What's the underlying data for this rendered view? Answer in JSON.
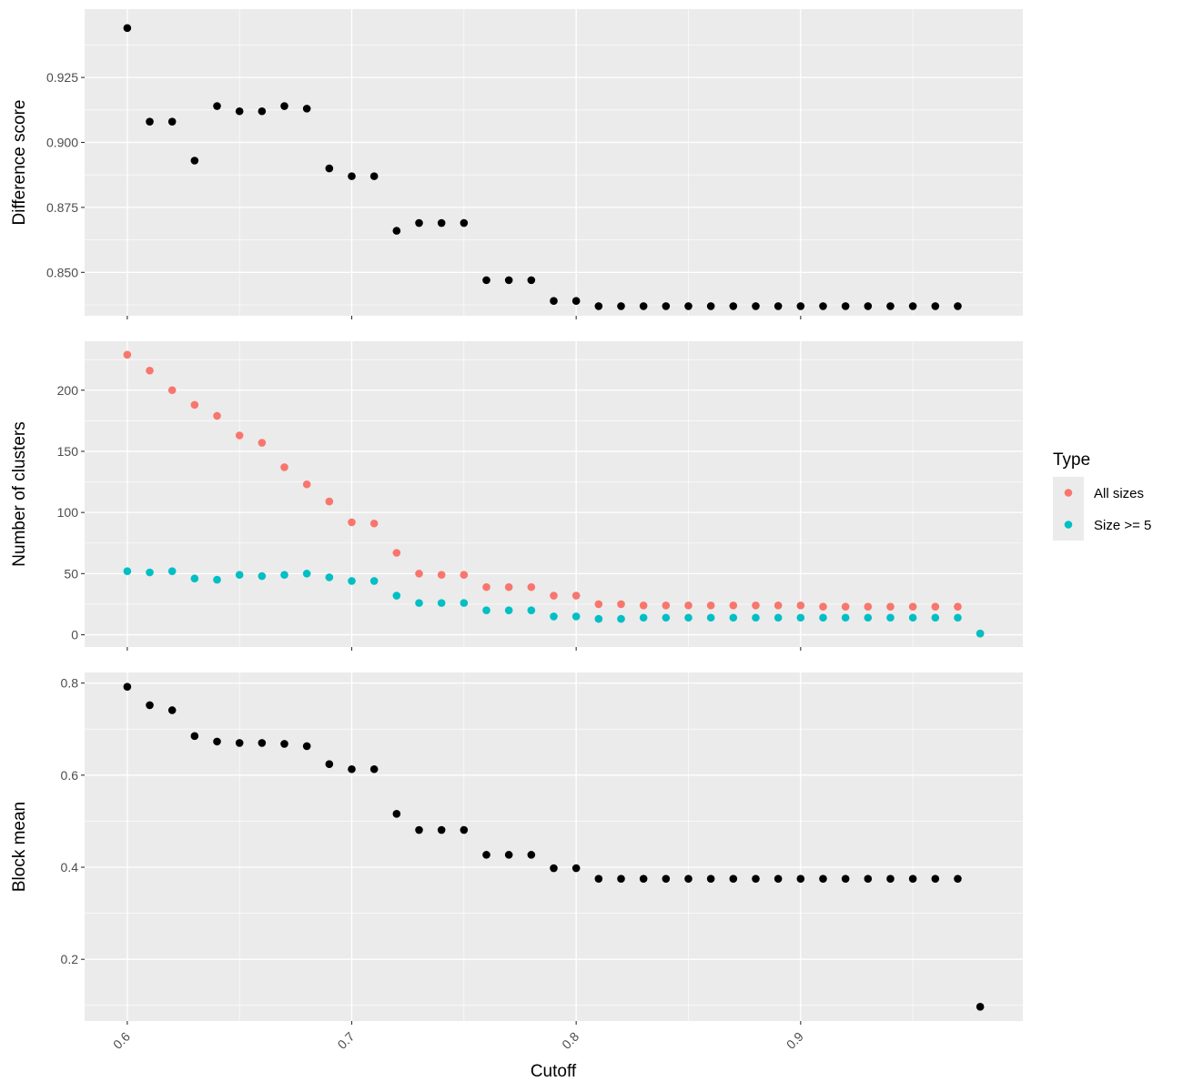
{
  "chart_data": {
    "type": "scatter",
    "xlabel": "Cutoff",
    "x_ticks": [
      "0.6",
      "0.7",
      "0.8",
      "0.9"
    ],
    "x_tick_values": [
      0.6,
      0.7,
      0.8,
      0.9
    ],
    "xlim": [
      0.581,
      0.999
    ],
    "panels": [
      {
        "ylabel": "Difference score",
        "ylim": [
          0.8333,
          0.9513
        ],
        "y_ticks": [
          "0.850",
          "0.875",
          "0.900",
          "0.925"
        ],
        "y_tick_values": [
          0.85,
          0.875,
          0.9,
          0.925
        ],
        "series": [
          {
            "color": "#000000",
            "x": [
              0.6,
              0.61,
              0.62,
              0.63,
              0.64,
              0.65,
              0.66,
              0.67,
              0.68,
              0.69,
              0.7,
              0.71,
              0.72,
              0.73,
              0.74,
              0.75,
              0.76,
              0.77,
              0.78,
              0.79,
              0.8,
              0.81,
              0.82,
              0.83,
              0.84,
              0.85,
              0.86,
              0.87,
              0.88,
              0.89,
              0.9,
              0.91,
              0.92,
              0.93,
              0.94,
              0.95,
              0.96,
              0.97
            ],
            "y": [
              0.944,
              0.908,
              0.908,
              0.893,
              0.914,
              0.912,
              0.912,
              0.914,
              0.913,
              0.89,
              0.887,
              0.887,
              0.866,
              0.869,
              0.869,
              0.869,
              0.847,
              0.847,
              0.847,
              0.839,
              0.839,
              0.837,
              0.837,
              0.837,
              0.837,
              0.837,
              0.837,
              0.837,
              0.837,
              0.837,
              0.837,
              0.837,
              0.837,
              0.837,
              0.837,
              0.837,
              0.837,
              0.837
            ]
          }
        ]
      },
      {
        "ylabel": "Number of clusters",
        "ylim": [
          -10,
          240
        ],
        "y_ticks": [
          "0",
          "50",
          "100",
          "150",
          "200"
        ],
        "y_tick_values": [
          0,
          50,
          100,
          150,
          200
        ],
        "series": [
          {
            "name": "All sizes",
            "color": "#F8766D",
            "x": [
              0.6,
              0.61,
              0.62,
              0.63,
              0.64,
              0.65,
              0.66,
              0.67,
              0.68,
              0.69,
              0.7,
              0.71,
              0.72,
              0.73,
              0.74,
              0.75,
              0.76,
              0.77,
              0.78,
              0.79,
              0.8,
              0.81,
              0.82,
              0.83,
              0.84,
              0.85,
              0.86,
              0.87,
              0.88,
              0.89,
              0.9,
              0.91,
              0.92,
              0.93,
              0.94,
              0.95,
              0.96,
              0.97,
              0.98
            ],
            "y": [
              229,
              216,
              200,
              188,
              179,
              163,
              157,
              137,
              123,
              109,
              92,
              91,
              67,
              50,
              49,
              49,
              39,
              39,
              39,
              32,
              32,
              25,
              25,
              24,
              24,
              24,
              24,
              24,
              24,
              24,
              24,
              23,
              23,
              23,
              23,
              23,
              23,
              23,
              1
            ]
          },
          {
            "name": "Size >= 5",
            "color": "#00BFC4",
            "x": [
              0.6,
              0.61,
              0.62,
              0.63,
              0.64,
              0.65,
              0.66,
              0.67,
              0.68,
              0.69,
              0.7,
              0.71,
              0.72,
              0.73,
              0.74,
              0.75,
              0.76,
              0.77,
              0.78,
              0.79,
              0.8,
              0.81,
              0.82,
              0.83,
              0.84,
              0.85,
              0.86,
              0.87,
              0.88,
              0.89,
              0.9,
              0.91,
              0.92,
              0.93,
              0.94,
              0.95,
              0.96,
              0.97,
              0.98
            ],
            "y": [
              52,
              51,
              52,
              46,
              45,
              49,
              48,
              49,
              50,
              47,
              44,
              44,
              32,
              26,
              26,
              26,
              20,
              20,
              20,
              15,
              15,
              13,
              13,
              14,
              14,
              14,
              14,
              14,
              14,
              14,
              14,
              14,
              14,
              14,
              14,
              14,
              14,
              14,
              1
            ]
          }
        ]
      },
      {
        "ylabel": "Block mean",
        "ylim": [
          0.066,
          0.823
        ],
        "y_ticks": [
          "0.2",
          "0.4",
          "0.6",
          "0.8"
        ],
        "y_tick_values": [
          0.2,
          0.4,
          0.6,
          0.8
        ],
        "series": [
          {
            "color": "#000000",
            "x": [
              0.6,
              0.61,
              0.62,
              0.63,
              0.64,
              0.65,
              0.66,
              0.67,
              0.68,
              0.69,
              0.7,
              0.71,
              0.72,
              0.73,
              0.74,
              0.75,
              0.76,
              0.77,
              0.78,
              0.79,
              0.8,
              0.81,
              0.82,
              0.83,
              0.84,
              0.85,
              0.86,
              0.87,
              0.88,
              0.89,
              0.9,
              0.91,
              0.92,
              0.93,
              0.94,
              0.95,
              0.96,
              0.97,
              0.98
            ],
            "y": [
              0.792,
              0.752,
              0.741,
              0.685,
              0.673,
              0.67,
              0.67,
              0.668,
              0.663,
              0.624,
              0.613,
              0.613,
              0.516,
              0.481,
              0.481,
              0.481,
              0.427,
              0.427,
              0.427,
              0.398,
              0.398,
              0.375,
              0.375,
              0.375,
              0.375,
              0.375,
              0.375,
              0.375,
              0.375,
              0.375,
              0.375,
              0.375,
              0.375,
              0.375,
              0.375,
              0.375,
              0.375,
              0.375,
              0.097
            ]
          }
        ]
      }
    ],
    "legend": {
      "title": "Type",
      "position": "right",
      "items": [
        {
          "label": "All sizes",
          "color": "#F8766D"
        },
        {
          "label": "Size >= 5",
          "color": "#00BFC4"
        }
      ]
    },
    "grid": true,
    "background": "#EBEBEB"
  }
}
